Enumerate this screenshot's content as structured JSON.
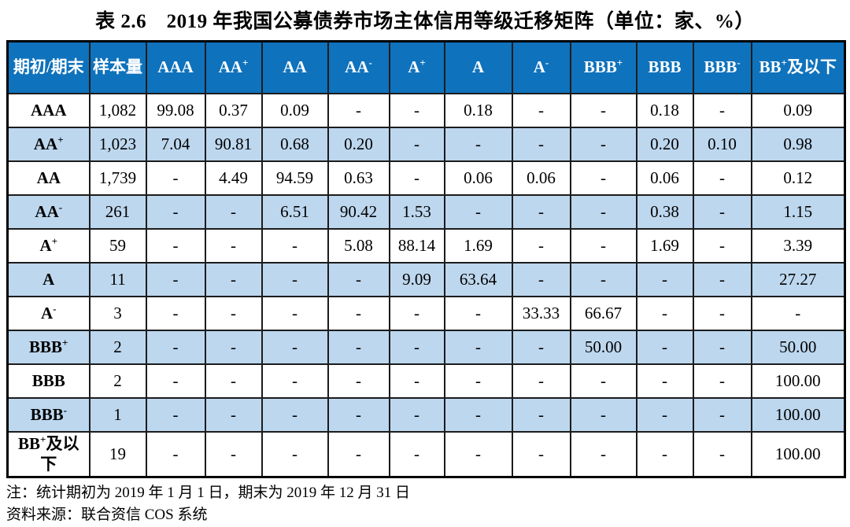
{
  "title": "表 2.6　2019 年我国公募债券市场主体信用等级迁移矩阵（单位：家、%）",
  "colors": {
    "header_bg": "#0F72BC",
    "header_text": "#FFFFFF",
    "stripe_bg": "#BDD7EE",
    "border": "#000000"
  },
  "table": {
    "corner_header": "期初/期末",
    "sample_header": "样本量",
    "columns": [
      {
        "base": "AAA"
      },
      {
        "base": "AA",
        "sup": "+"
      },
      {
        "base": "AA"
      },
      {
        "base": "AA",
        "sup": "-"
      },
      {
        "base": "A",
        "sup": "+"
      },
      {
        "base": "A"
      },
      {
        "base": "A",
        "sup": "-"
      },
      {
        "base": "BBB",
        "sup": "+"
      },
      {
        "base": "BBB"
      },
      {
        "base": "BBB",
        "sup": "-"
      },
      {
        "base": "BB",
        "sup": "+",
        "suffix": "及以下"
      }
    ],
    "rows": [
      {
        "label": {
          "base": "AAA"
        },
        "sample": "1,082",
        "values": [
          "99.08",
          "0.37",
          "0.09",
          "-",
          "-",
          "0.18",
          "-",
          "-",
          "0.18",
          "-",
          "0.09"
        ]
      },
      {
        "label": {
          "base": "AA",
          "sup": "+"
        },
        "sample": "1,023",
        "values": [
          "7.04",
          "90.81",
          "0.68",
          "0.20",
          "-",
          "-",
          "-",
          "-",
          "0.20",
          "0.10",
          "0.98"
        ]
      },
      {
        "label": {
          "base": "AA"
        },
        "sample": "1,739",
        "values": [
          "-",
          "4.49",
          "94.59",
          "0.63",
          "-",
          "0.06",
          "0.06",
          "-",
          "0.06",
          "-",
          "0.12"
        ]
      },
      {
        "label": {
          "base": "AA",
          "sup": "-"
        },
        "sample": "261",
        "values": [
          "-",
          "-",
          "6.51",
          "90.42",
          "1.53",
          "-",
          "-",
          "-",
          "0.38",
          "-",
          "1.15"
        ]
      },
      {
        "label": {
          "base": "A",
          "sup": "+"
        },
        "sample": "59",
        "values": [
          "-",
          "-",
          "-",
          "5.08",
          "88.14",
          "1.69",
          "-",
          "-",
          "1.69",
          "-",
          "3.39"
        ]
      },
      {
        "label": {
          "base": "A"
        },
        "sample": "11",
        "values": [
          "-",
          "-",
          "-",
          "-",
          "9.09",
          "63.64",
          "-",
          "-",
          "-",
          "-",
          "27.27"
        ]
      },
      {
        "label": {
          "base": "A",
          "sup": "-"
        },
        "sample": "3",
        "values": [
          "-",
          "-",
          "-",
          "-",
          "-",
          "-",
          "33.33",
          "66.67",
          "-",
          "-",
          "-"
        ]
      },
      {
        "label": {
          "base": "BBB",
          "sup": "+"
        },
        "sample": "2",
        "values": [
          "-",
          "-",
          "-",
          "-",
          "-",
          "-",
          "-",
          "50.00",
          "-",
          "-",
          "50.00"
        ]
      },
      {
        "label": {
          "base": "BBB"
        },
        "sample": "2",
        "values": [
          "-",
          "-",
          "-",
          "-",
          "-",
          "-",
          "-",
          "-",
          "-",
          "-",
          "100.00"
        ]
      },
      {
        "label": {
          "base": "BBB",
          "sup": "-"
        },
        "sample": "1",
        "values": [
          "-",
          "-",
          "-",
          "-",
          "-",
          "-",
          "-",
          "-",
          "-",
          "-",
          "100.00"
        ]
      },
      {
        "label": {
          "base": "BB",
          "sup": "+",
          "suffix": "及以下"
        },
        "sample": "19",
        "values": [
          "-",
          "-",
          "-",
          "-",
          "-",
          "-",
          "-",
          "-",
          "-",
          "-",
          "100.00"
        ]
      }
    ]
  },
  "notes": [
    "注：统计期初为 2019 年 1 月 1 日，期末为 2019 年 12 月 31 日",
    "资料来源：联合资信 COS 系统"
  ]
}
